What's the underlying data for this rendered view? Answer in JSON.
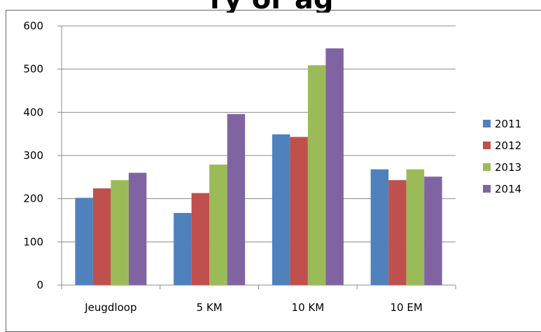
{
  "chart_data": {
    "type": "bar",
    "title": "",
    "xlabel": "",
    "ylabel": "",
    "categories": [
      "Jeugdloop",
      "5 KM",
      "10 KM",
      "10 EM"
    ],
    "series": [
      {
        "name": "2011",
        "color": "#4F81BD",
        "values": [
          202,
          167,
          349,
          268
        ]
      },
      {
        "name": "2012",
        "color": "#C0504D",
        "values": [
          224,
          213,
          343,
          243
        ]
      },
      {
        "name": "2013",
        "color": "#9BBB59",
        "values": [
          243,
          279,
          509,
          268
        ]
      },
      {
        "name": "2014",
        "color": "#8064A2",
        "values": [
          260,
          396,
          548,
          251
        ]
      }
    ],
    "ylim": [
      0,
      600
    ],
    "yticks": [
      0,
      100,
      200,
      300,
      400,
      500,
      600
    ],
    "grid": true,
    "legend": "right"
  }
}
